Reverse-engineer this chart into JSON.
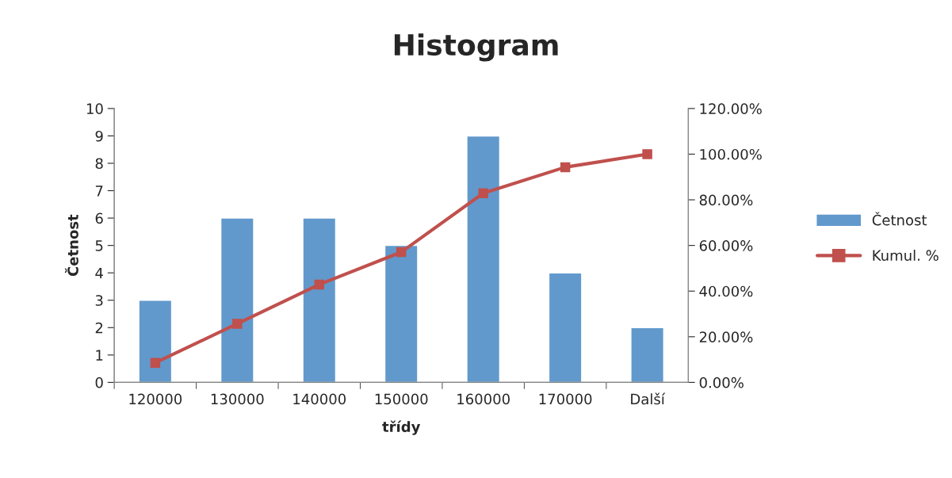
{
  "chart_data": {
    "type": "bar",
    "title": "Histogram",
    "xlabel": "třídy",
    "ylabel": "Četnost",
    "categories": [
      "120000",
      "130000",
      "140000",
      "150000",
      "160000",
      "170000",
      "Další"
    ],
    "series": [
      {
        "name": "Četnost",
        "color": "#6199cc",
        "values": [
          3,
          6,
          6,
          5,
          9,
          4,
          2
        ]
      },
      {
        "name": "Kumul. %",
        "type": "line",
        "axis": "y2",
        "color": "#c0504d",
        "marker": "square",
        "values": [
          8.6,
          25.7,
          42.9,
          57.1,
          82.9,
          94.3,
          100
        ]
      }
    ],
    "ylim": [
      0,
      10
    ],
    "yticks": [
      0,
      1,
      2,
      3,
      4,
      5,
      6,
      7,
      8,
      9,
      10
    ],
    "y2lim": [
      0,
      120
    ],
    "y2ticks": [
      {
        "value": 0,
        "label": "0.00%"
      },
      {
        "value": 20,
        "label": "20.00%"
      },
      {
        "value": 40,
        "label": "40.00%"
      },
      {
        "value": 60,
        "label": "60.00%"
      },
      {
        "value": 80,
        "label": "80.00%"
      },
      {
        "value": 100,
        "label": "100.00%"
      },
      {
        "value": 120,
        "label": "120.00%"
      }
    ],
    "grid": false,
    "legend": "right"
  }
}
